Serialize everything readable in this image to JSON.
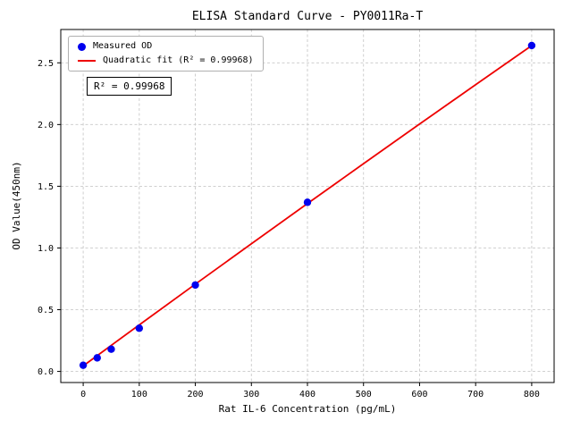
{
  "chart_data": {
    "type": "scatter",
    "title": "ELISA Standard Curve - PY0011Ra-T",
    "xlabel": "Rat IL-6 Concentration (pg/mL)",
    "ylabel": "OD Value(450nm)",
    "annotation": "R² = 0.99968",
    "r_squared": 0.99968,
    "grid": true,
    "grid_color": "#c9c9c9",
    "legend_position": "upper left",
    "xlim": [
      -40,
      840
    ],
    "ylim": [
      -0.09,
      2.77
    ],
    "xticks": [
      0,
      100,
      200,
      300,
      400,
      500,
      600,
      700,
      800
    ],
    "xtick_labels": [
      "0",
      "100",
      "200",
      "300",
      "400",
      "500",
      "600",
      "700",
      "800"
    ],
    "yticks": [
      0,
      0.5,
      1.0,
      1.5,
      2.0,
      2.5
    ],
    "ytick_labels": [
      "0.0",
      "0.5",
      "1.0",
      "1.5",
      "2.0",
      "2.5"
    ],
    "series": [
      {
        "name": "Measured OD",
        "type": "scatter",
        "color": "#0000ee",
        "x": [
          0,
          25,
          50,
          100,
          200,
          400,
          800
        ],
        "y": [
          0.05,
          0.11,
          0.18,
          0.35,
          0.7,
          1.37,
          2.64
        ]
      },
      {
        "name": "Quadratic fit (R² = 0.99968)",
        "type": "line",
        "color": "#ee0000",
        "x": [
          0,
          100,
          200,
          300,
          400,
          500,
          600,
          700,
          800
        ],
        "y": [
          0.045,
          0.377,
          0.707,
          1.034,
          1.36,
          1.683,
          2.004,
          2.323,
          2.64
        ]
      }
    ]
  }
}
